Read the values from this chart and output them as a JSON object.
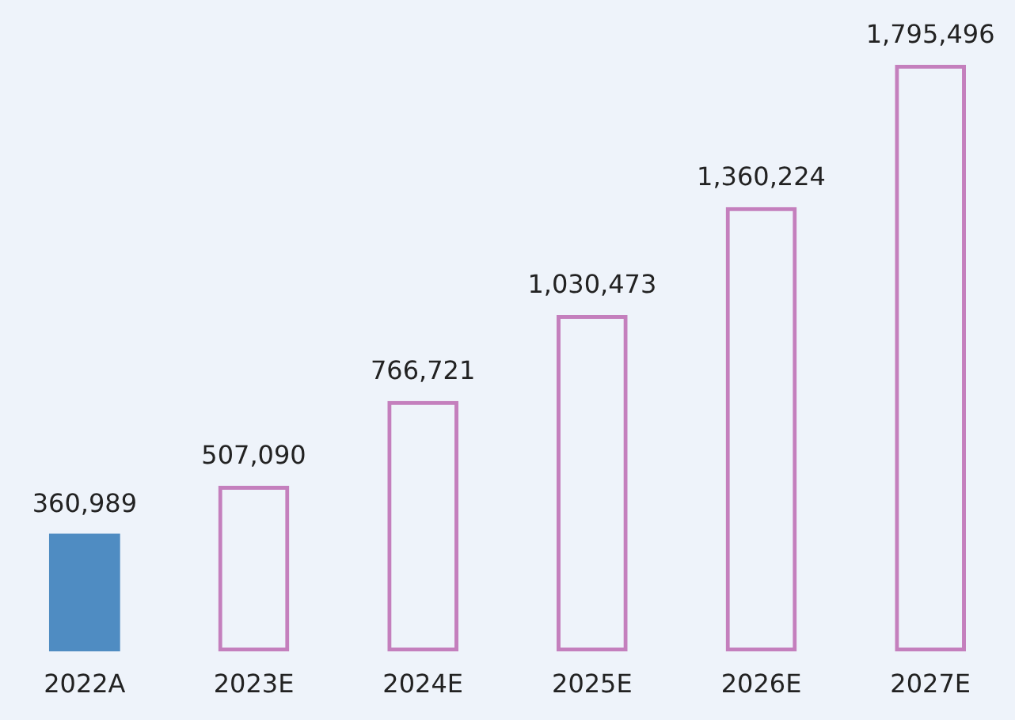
{
  "chart_data": {
    "type": "bar",
    "categories": [
      "2022A",
      "2023E",
      "2024E",
      "2025E",
      "2026E",
      "2027E"
    ],
    "stacked": true,
    "legend": false,
    "grid": false,
    "series": [
      {
        "color": "#4f8cc2",
        "values": [
          360989,
          null,
          null,
          null,
          null,
          null
        ],
        "value_labels": [
          "360,989",
          null,
          null,
          null,
          null,
          null
        ]
      },
      {
        "color": "#c47fbd",
        "values": [
          null,
          507090,
          766721,
          1030473,
          1360224,
          1795496
        ],
        "value_labels": [
          null,
          "507,090",
          "766,721",
          "1,030,473",
          "1,360,224",
          "1,795,496"
        ]
      }
    ]
  }
}
